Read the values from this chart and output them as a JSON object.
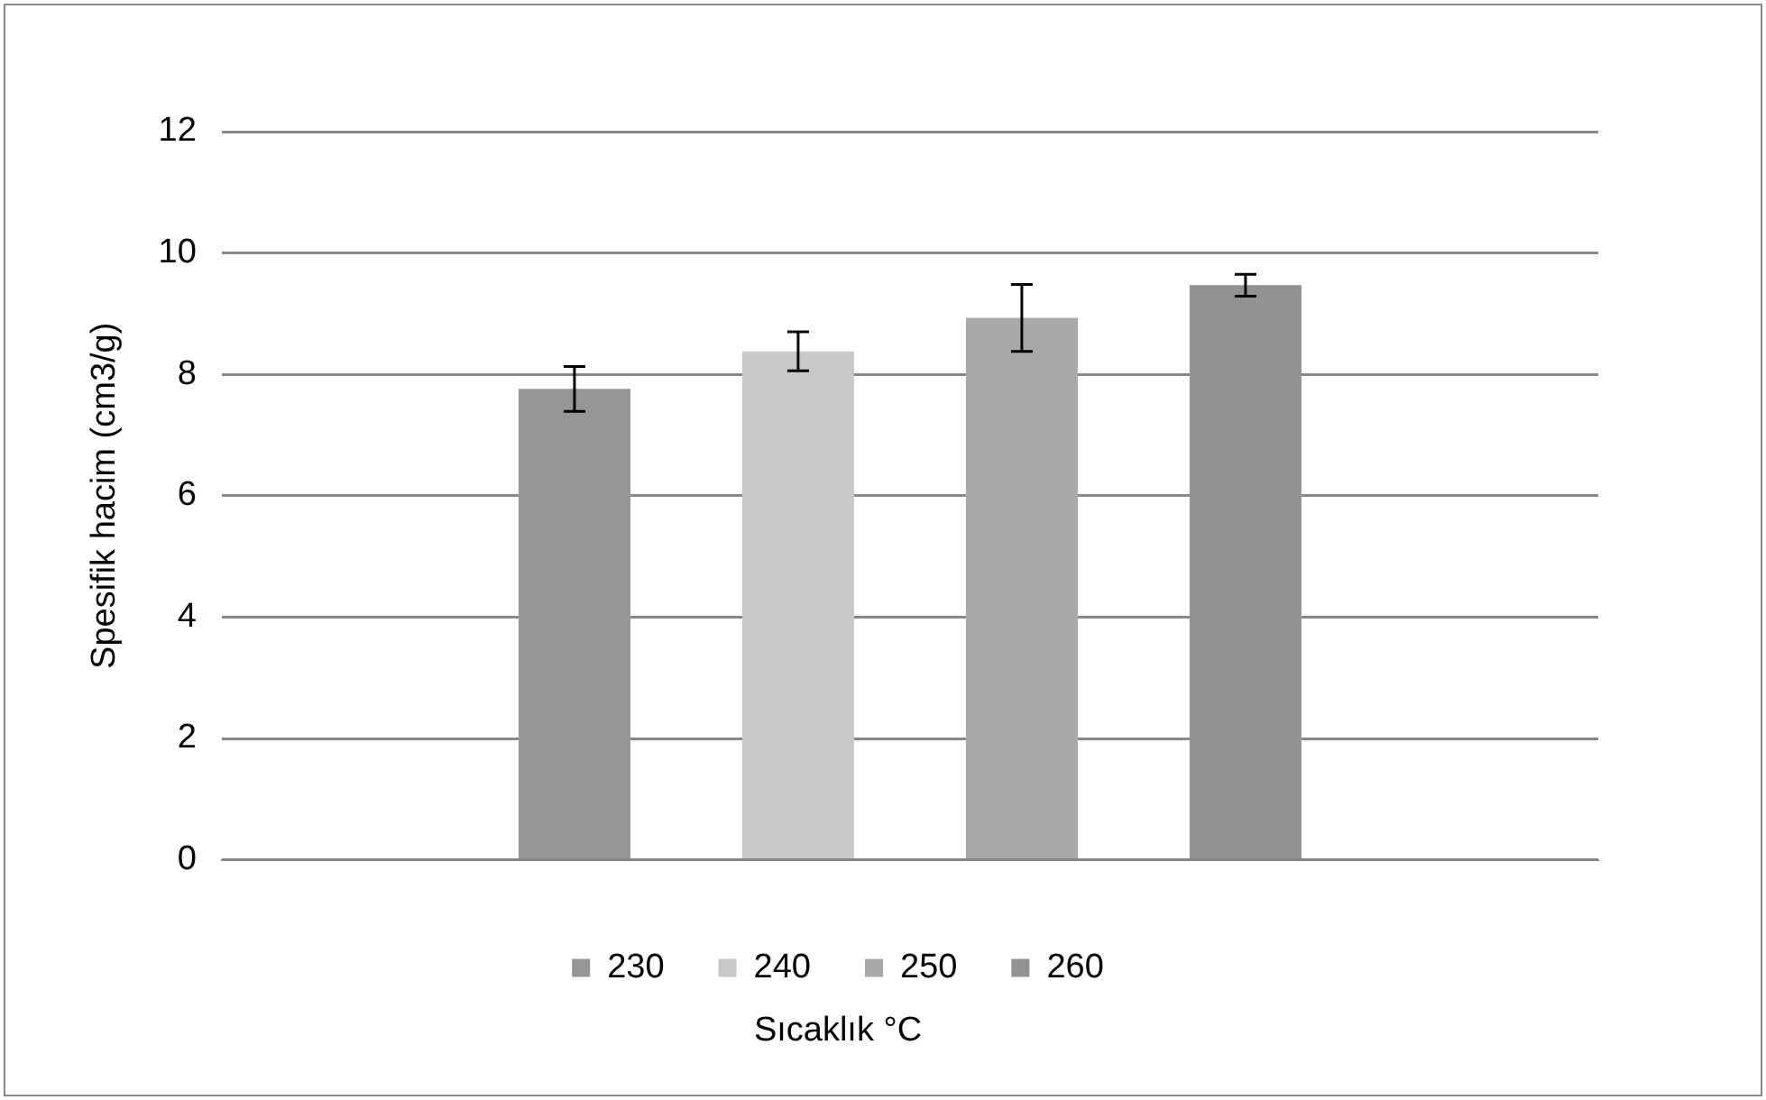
{
  "chart_data": {
    "type": "bar",
    "categories": [
      null
    ],
    "xlabel": "Sıcaklık °C",
    "ylabel": "Spesifik hacim (cm3/g)",
    "series": [
      {
        "name": "230",
        "color": "#969696",
        "values": [
          7.76
        ],
        "errors": [
          0.37
        ]
      },
      {
        "name": "240",
        "color": "#c8c8c8",
        "values": [
          8.38
        ],
        "errors": [
          0.32
        ]
      },
      {
        "name": "250",
        "color": "#a9a9a9",
        "values": [
          8.93
        ],
        "errors": [
          0.55
        ]
      },
      {
        "name": "260",
        "color": "#929292",
        "values": [
          9.47
        ],
        "errors": [
          0.18
        ]
      }
    ],
    "ylim": [
      0,
      12
    ],
    "yticks": [
      0,
      2,
      4,
      6,
      8,
      10,
      12
    ],
    "grid": "y",
    "legend": "bottom"
  }
}
